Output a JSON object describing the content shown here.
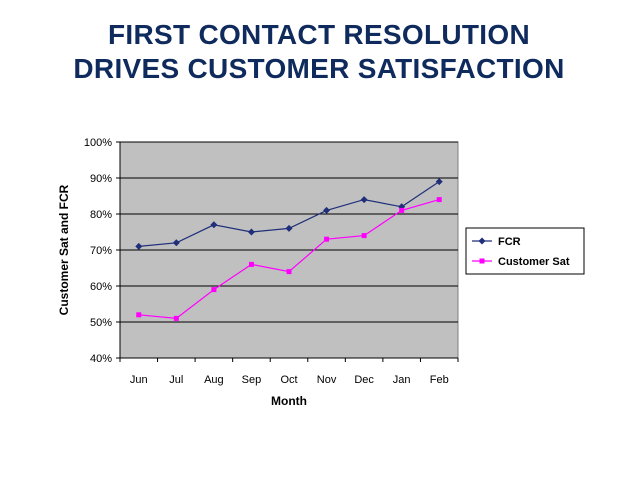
{
  "page": {
    "title_line1": "FIRST CONTACT RESOLUTION",
    "title_line2": "DRIVES CUSTOMER  SATISFACTION"
  },
  "chart_data": {
    "type": "line",
    "title": "",
    "xlabel": "Month",
    "ylabel": "Customer Sat and FCR",
    "categories": [
      "Jun",
      "Jul",
      "Aug",
      "Sep",
      "Oct",
      "Nov",
      "Dec",
      "Jan",
      "Feb"
    ],
    "ylim": [
      40,
      100
    ],
    "yticks": [
      40,
      50,
      60,
      70,
      80,
      90,
      100
    ],
    "ytick_labels": [
      "40%",
      "50%",
      "60%",
      "70%",
      "80%",
      "90%",
      "100%"
    ],
    "grid": true,
    "plot_background": "#c0c0c0",
    "legend_position": "right",
    "series": [
      {
        "name": "FCR",
        "color": "#1f2f7a",
        "marker": "diamond",
        "values": [
          71,
          72,
          77,
          75,
          76,
          81,
          84,
          82,
          89
        ]
      },
      {
        "name": "Customer Sat",
        "color": "#ff00ff",
        "marker": "square",
        "values": [
          52,
          51,
          59,
          66,
          64,
          73,
          74,
          81,
          84
        ]
      }
    ]
  }
}
